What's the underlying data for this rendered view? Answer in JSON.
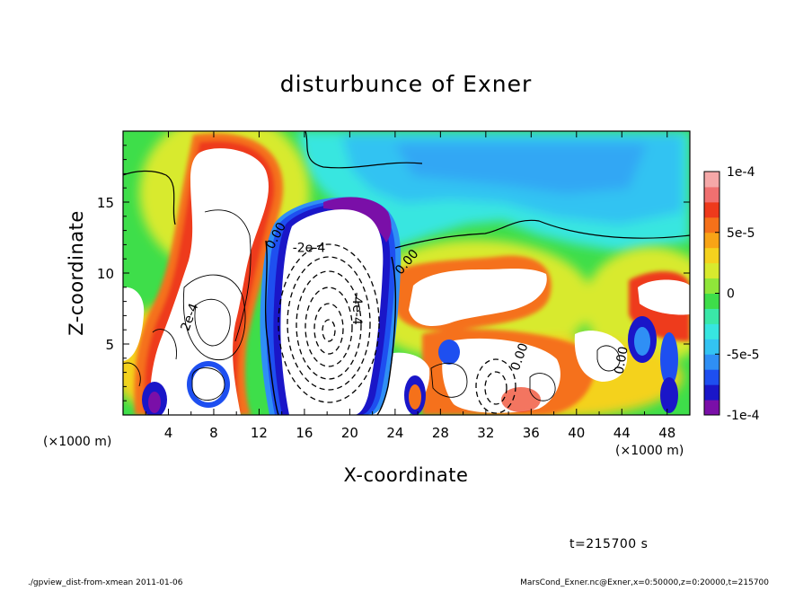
{
  "chart_data": {
    "type": "heatmap",
    "title": "disturbunce of Exner",
    "xlabel": "X-coordinate",
    "ylabel": "Z-coordinate",
    "x_unit": "(×1000 m)",
    "y_unit": "(×1000 m)",
    "xlim": [
      0,
      50
    ],
    "ylim": [
      0,
      20
    ],
    "x_ticks": [
      4,
      8,
      12,
      16,
      20,
      24,
      28,
      32,
      36,
      40,
      44,
      48
    ],
    "y_ticks": [
      5,
      10,
      15
    ],
    "colorbar": {
      "range": [
        -0.0001,
        0.0001
      ],
      "tick_values": [
        0.0001,
        5e-05,
        0,
        -5e-05,
        -0.0001
      ],
      "tick_labels": [
        "1e-4",
        "5e-5",
        "0",
        "-5e-5",
        "-1e-4"
      ],
      "colors": [
        "#7a0fa8",
        "#1a16c8",
        "#1e4ff0",
        "#2f8ff5",
        "#33c3f2",
        "#37e6e0",
        "#3ae8a8",
        "#3ede4a",
        "#8fe63a",
        "#d8ea2e",
        "#f4d21e",
        "#f8a416",
        "#f5711a",
        "#ee3a1c",
        "#f07070",
        "#f5a8a8"
      ]
    },
    "contour_labels": [
      {
        "text": "0.00",
        "x": 13.8,
        "z": 12.5,
        "angle": -62
      },
      {
        "text": "-2e-4",
        "x": 16.4,
        "z": 11.5,
        "angle": 0
      },
      {
        "text": "-4e-4",
        "x": 20.3,
        "z": 7.5,
        "angle": 90
      },
      {
        "text": "2e-4",
        "x": 6.2,
        "z": 6.8,
        "angle": -70
      },
      {
        "text": "0.00",
        "x": 25.3,
        "z": 10.6,
        "angle": -50
      },
      {
        "text": "0.00",
        "x": 35.3,
        "z": 4.0,
        "angle": -70
      },
      {
        "text": "0.00",
        "x": 44.3,
        "z": 3.8,
        "angle": -80
      }
    ],
    "time_label": "t=215700 s"
  },
  "footer": {
    "left": "./gpview_dist-from-xmean  2011-01-06",
    "right": "MarsCond_Exner.nc@Exner,x=0:50000,z=0:20000,t=215700"
  }
}
